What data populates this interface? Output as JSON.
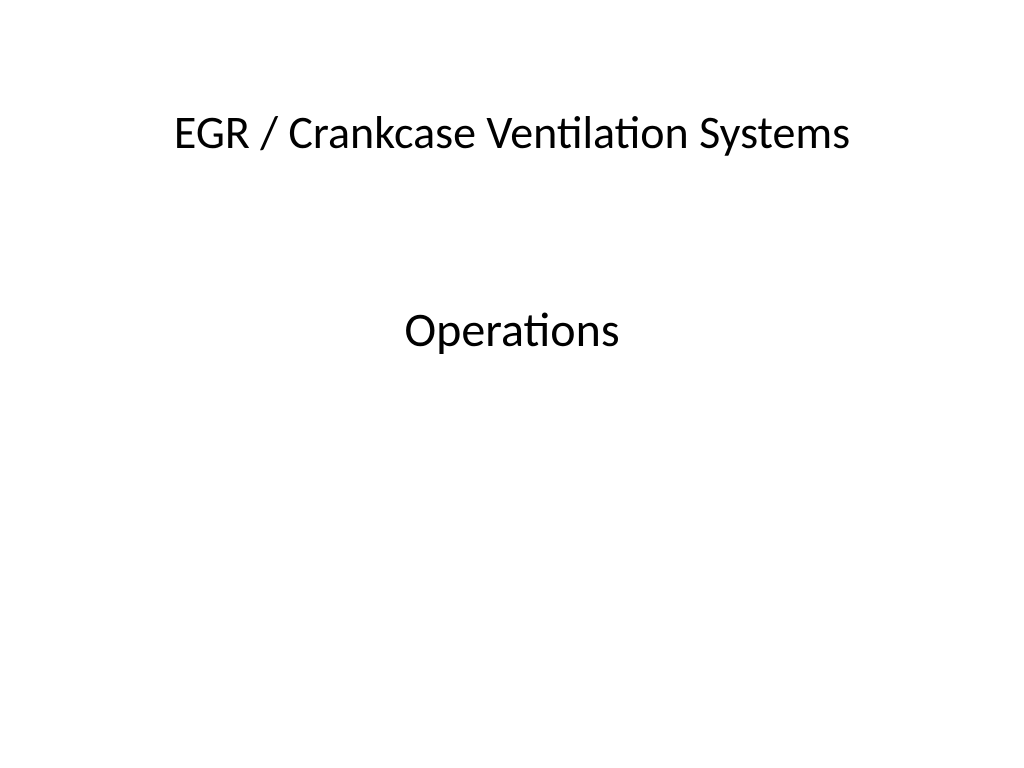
{
  "slide": {
    "title": "EGR / Crankcase Ventilation Systems",
    "subtitle": "Operations",
    "title_fontsize": 46,
    "subtitle_fontsize": 48,
    "title_color": "#000000",
    "subtitle_color": "#000000",
    "background_color": "#ffffff",
    "font_family": "Calibri"
  }
}
